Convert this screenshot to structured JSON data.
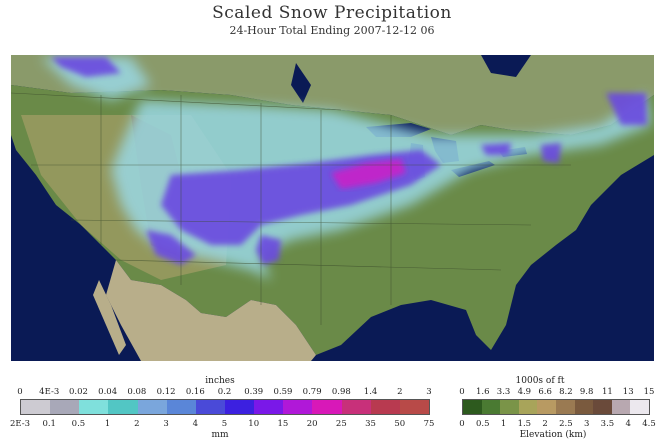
{
  "title": "Scaled Snow Precipitation",
  "subtitle": "24-Hour Total Ending 2007-12-12 06",
  "precip_legend": {
    "top_unit": "inches",
    "bottom_unit": "mm",
    "inches_ticks": [
      "0",
      "4E-3",
      "0.02",
      "0.04",
      "0.08",
      "0.12",
      "0.16",
      "0.2",
      "0.39",
      "0.59",
      "0.79",
      "0.98",
      "1.4",
      "2",
      "3"
    ],
    "mm_ticks": [
      "2E-3",
      "0.1",
      "0.5",
      "1",
      "2",
      "3",
      "4",
      "5",
      "10",
      "15",
      "20",
      "25",
      "35",
      "50",
      "75"
    ],
    "colors": [
      "#cdcbd2",
      "#a8a8b8",
      "#7fe0dc",
      "#52c6c4",
      "#7aa6dc",
      "#5a86d8",
      "#4a4ad8",
      "#3c20e0",
      "#7a18e8",
      "#b018d8",
      "#d818b8",
      "#c8307a",
      "#b83a50",
      "#b84a48"
    ]
  },
  "elevation_legend": {
    "top_unit": "1000s of ft",
    "bottom_unit": "Elevation (km)",
    "ft_ticks": [
      "0",
      "1.6",
      "3.3",
      "4.9",
      "6.6",
      "8.2",
      "9.8",
      "11",
      "13",
      "15"
    ],
    "km_ticks": [
      "0",
      "0.5",
      "1",
      "1.5",
      "2",
      "2.5",
      "3",
      "3.5",
      "4",
      "4.5"
    ],
    "colors": [
      "#2d5a1e",
      "#4a7a32",
      "#7a9448",
      "#a8a45a",
      "#b89a62",
      "#9a7a52",
      "#7a5a3e",
      "#6a4a3a",
      "#b8a8b0",
      "#ece8ee"
    ]
  }
}
